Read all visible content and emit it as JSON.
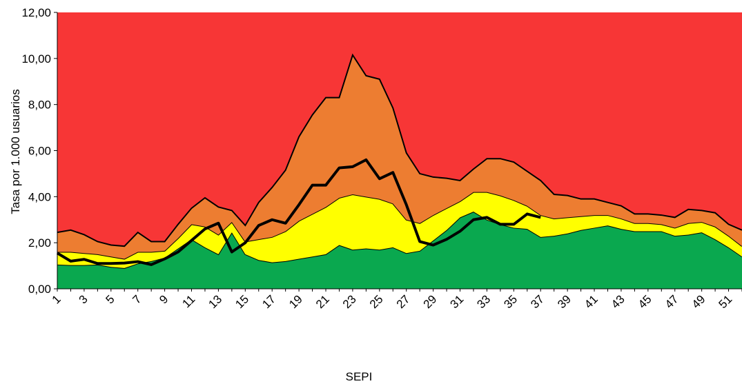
{
  "chart_data": {
    "type": "area",
    "x_label": "SEPI",
    "y_label": "Tasa  por 1.000 usuarios",
    "plot_background": "#f73636",
    "categories": [
      "1",
      null,
      "3",
      null,
      "5",
      null,
      "7",
      null,
      "9",
      null,
      "11",
      null,
      "13",
      null,
      "15",
      null,
      "17",
      null,
      "19",
      null,
      "21",
      null,
      "23",
      null,
      "25",
      null,
      "27",
      null,
      "29",
      null,
      "31",
      null,
      "33",
      null,
      "35",
      null,
      "37",
      null,
      "39",
      null,
      "41",
      null,
      "43",
      null,
      "45",
      null,
      "47",
      null,
      "49",
      null,
      "51",
      null
    ],
    "ylim": [
      0,
      12
    ],
    "yticks": [
      {
        "value": 0,
        "label": "0,00"
      },
      {
        "value": 2,
        "label": "2,00"
      },
      {
        "value": 4,
        "label": "4,00"
      },
      {
        "value": 6,
        "label": "6,00"
      },
      {
        "value": 8,
        "label": "8,00"
      },
      {
        "value": 10,
        "label": "10,00"
      },
      {
        "value": 12,
        "label": "12,00"
      }
    ],
    "series": [
      {
        "color": "#0aa84f",
        "values": [
          1.05,
          1.03,
          1.03,
          1.05,
          0.95,
          0.9,
          1.1,
          1.2,
          1.35,
          1.75,
          2.15,
          1.8,
          1.5,
          2.45,
          1.5,
          1.25,
          1.15,
          1.2,
          1.3,
          1.4,
          1.5,
          1.9,
          1.7,
          1.75,
          1.7,
          1.8,
          1.55,
          1.65,
          2.1,
          2.55,
          3.1,
          3.35,
          3.0,
          2.8,
          2.65,
          2.6,
          2.25,
          2.3,
          2.4,
          2.55,
          2.65,
          2.75,
          2.6,
          2.5,
          2.5,
          2.5,
          2.3,
          2.35,
          2.45,
          2.15,
          1.8,
          1.4
        ]
      },
      {
        "color": "#ffff00",
        "values": [
          1.6,
          1.6,
          1.55,
          1.5,
          1.4,
          1.3,
          1.6,
          1.6,
          1.65,
          2.2,
          2.8,
          2.7,
          2.35,
          2.9,
          2.05,
          2.15,
          2.25,
          2.5,
          2.95,
          3.25,
          3.55,
          3.95,
          4.1,
          4.0,
          3.9,
          3.7,
          3.0,
          2.85,
          3.2,
          3.5,
          3.8,
          4.2,
          4.2,
          4.05,
          3.85,
          3.6,
          3.2,
          3.05,
          3.1,
          3.15,
          3.2,
          3.2,
          3.05,
          2.85,
          2.85,
          2.8,
          2.65,
          2.85,
          2.9,
          2.7,
          2.3,
          1.85
        ]
      },
      {
        "color": "#ed7d31",
        "values": [
          2.45,
          2.55,
          2.35,
          2.05,
          1.9,
          1.85,
          2.45,
          2.05,
          2.05,
          2.8,
          3.5,
          3.95,
          3.55,
          3.4,
          2.75,
          3.75,
          4.4,
          5.15,
          6.6,
          7.55,
          8.3,
          8.3,
          10.15,
          9.25,
          9.1,
          7.85,
          5.9,
          5.0,
          4.85,
          4.8,
          4.7,
          5.2,
          5.65,
          5.65,
          5.5,
          5.1,
          4.7,
          4.1,
          4.05,
          3.9,
          3.9,
          3.75,
          3.6,
          3.25,
          3.25,
          3.2,
          3.1,
          3.45,
          3.4,
          3.3,
          2.8,
          2.55
        ]
      },
      {
        "type": "line",
        "color": "#000000",
        "values": [
          1.55,
          1.2,
          1.28,
          1.1,
          1.1,
          1.12,
          1.18,
          1.05,
          1.3,
          1.6,
          2.1,
          2.6,
          2.85,
          1.6,
          2.0,
          2.75,
          3.0,
          2.85,
          3.65,
          4.5,
          4.5,
          5.25,
          5.3,
          5.6,
          4.78,
          5.05,
          3.65,
          2.05,
          1.9,
          2.15,
          2.5,
          3.0,
          3.1,
          2.8,
          2.8,
          3.25,
          3.1,
          null,
          null,
          null,
          null,
          null,
          null,
          null,
          null,
          null,
          null,
          null,
          null,
          null,
          null,
          null
        ]
      }
    ]
  }
}
